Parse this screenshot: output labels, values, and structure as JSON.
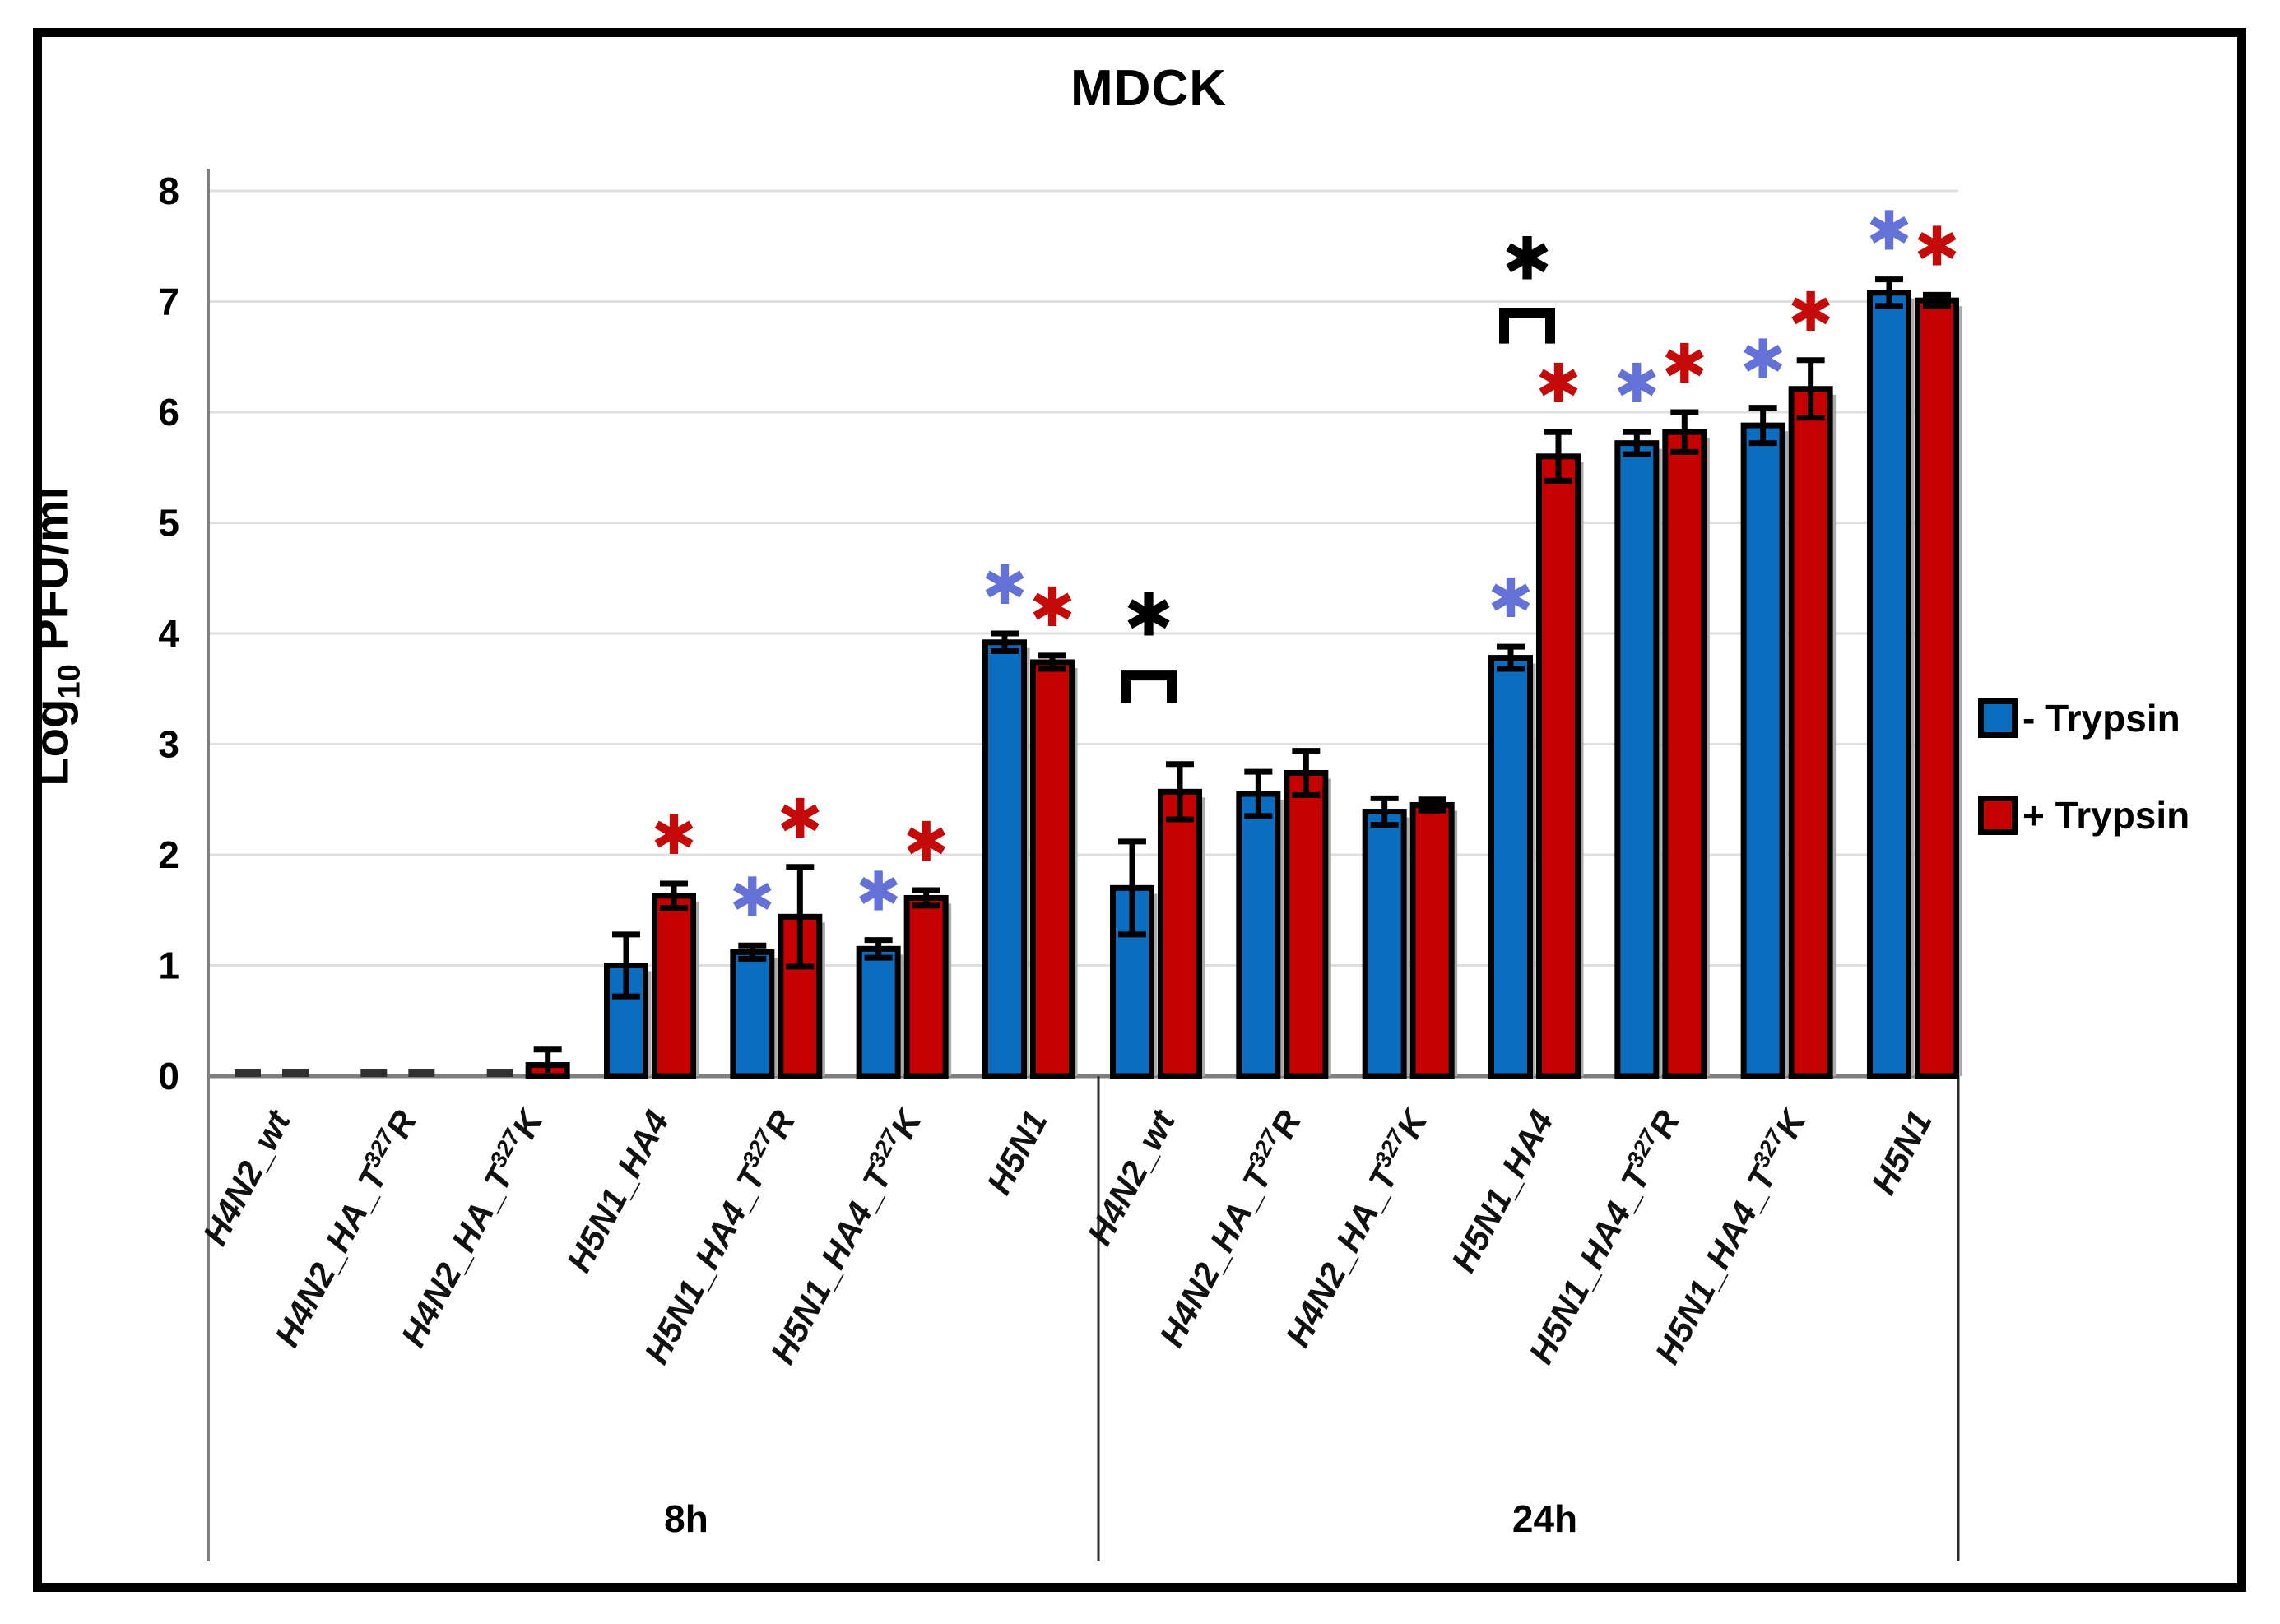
{
  "chart_data": {
    "type": "bar",
    "title": "MDCK",
    "ylabel_prefix": "Log",
    "ylabel_sub": "10",
    "ylabel_suffix": " PFU/ml",
    "ylim": [
      0,
      8
    ],
    "yticks": [
      0,
      1,
      2,
      3,
      4,
      5,
      6,
      7,
      8
    ],
    "grid": true,
    "legend_position": "right",
    "sig_glyph": "✱",
    "series_names": [
      "- Trypsin",
      "+ Trypsin"
    ],
    "colors": {
      "bar_blue": "#0B6DBF",
      "bar_red": "#C40000",
      "star_blue": "#6471D6",
      "star_red": "#C50A0A",
      "star_black": "#000000",
      "grid": "#DFDFDF",
      "axis": "#7F7F7F",
      "box": "#2B2B2B",
      "shadow": "#AAAAAA",
      "dash": "#303030"
    },
    "groups": [
      {
        "label": "8h",
        "categories": [
          {
            "label": "H4N2_wt",
            "bars": [
              {
                "value": 0,
                "err": 0,
                "sig": null
              },
              {
                "value": 0,
                "err": 0,
                "sig": null
              }
            ]
          },
          {
            "label": "H4N2_HA_T^{327}R",
            "bars": [
              {
                "value": 0,
                "err": 0,
                "sig": null
              },
              {
                "value": 0,
                "err": 0,
                "sig": null
              }
            ]
          },
          {
            "label": "H4N2_HA_T^{327}K",
            "bars": [
              {
                "value": 0,
                "err": 0,
                "sig": null
              },
              {
                "value": 0.1,
                "err": 0.14,
                "sig": null
              }
            ]
          },
          {
            "label": "H5N1_HA4",
            "bars": [
              {
                "value": 1.0,
                "err": 0.28,
                "sig": null
              },
              {
                "value": 1.63,
                "err": 0.11,
                "sig": "red"
              }
            ]
          },
          {
            "label": "H5N1_HA4_T^{327}R",
            "bars": [
              {
                "value": 1.12,
                "err": 0.06,
                "sig": "blue"
              },
              {
                "value": 1.44,
                "err": 0.45,
                "sig": "red"
              }
            ]
          },
          {
            "label": "H5N1_HA4_T^{327}K",
            "bars": [
              {
                "value": 1.15,
                "err": 0.08,
                "sig": "blue"
              },
              {
                "value": 1.61,
                "err": 0.07,
                "sig": "red"
              }
            ]
          },
          {
            "label": "H5N1",
            "bars": [
              {
                "value": 3.92,
                "err": 0.08,
                "sig": "blue"
              },
              {
                "value": 3.74,
                "err": 0.06,
                "sig": "red"
              }
            ]
          }
        ]
      },
      {
        "label": "24h",
        "categories": [
          {
            "label": "H4N2_wt",
            "bars": [
              {
                "value": 1.7,
                "err": 0.42,
                "sig": null
              },
              {
                "value": 2.57,
                "err": 0.25,
                "sig": null
              }
            ]
          },
          {
            "label": "H4N2_HA_T^{327}R",
            "bars": [
              {
                "value": 2.55,
                "err": 0.2,
                "sig": null
              },
              {
                "value": 2.74,
                "err": 0.2,
                "sig": null
              }
            ]
          },
          {
            "label": "H4N2_HA_T^{327}K",
            "bars": [
              {
                "value": 2.39,
                "err": 0.12,
                "sig": null
              },
              {
                "value": 2.45,
                "err": 0.05,
                "sig": null
              }
            ]
          },
          {
            "label": "H5N1_HA4",
            "bars": [
              {
                "value": 3.78,
                "err": 0.1,
                "sig": "blue"
              },
              {
                "value": 5.6,
                "err": 0.22,
                "sig": "red"
              }
            ]
          },
          {
            "label": "H5N1_HA4_T^{327}R",
            "bars": [
              {
                "value": 5.72,
                "err": 0.1,
                "sig": "blue"
              },
              {
                "value": 5.82,
                "err": 0.18,
                "sig": "red"
              }
            ]
          },
          {
            "label": "H5N1_HA4_T^{327}K",
            "bars": [
              {
                "value": 5.88,
                "err": 0.16,
                "sig": "blue"
              },
              {
                "value": 6.21,
                "err": 0.26,
                "sig": "red"
              }
            ]
          },
          {
            "label": "H5N1",
            "bars": [
              {
                "value": 7.08,
                "err": 0.12,
                "sig": "blue"
              },
              {
                "value": 7.01,
                "err": 0.05,
                "sig": "red"
              }
            ]
          }
        ]
      }
    ],
    "annotations": [
      {
        "group": 1,
        "category": 0,
        "bracket_y": 3.62,
        "leg": 0.25,
        "star_y": 4.16,
        "star": "✱"
      },
      {
        "group": 1,
        "category": 3,
        "bracket_y": 6.9,
        "leg": 0.28,
        "star_y": 7.38,
        "star": "✱"
      }
    ]
  },
  "legend": {
    "items": [
      {
        "label": "- Trypsin",
        "color": "#0B6DBF"
      },
      {
        "label": "+ Trypsin",
        "color": "#C40000"
      }
    ]
  }
}
